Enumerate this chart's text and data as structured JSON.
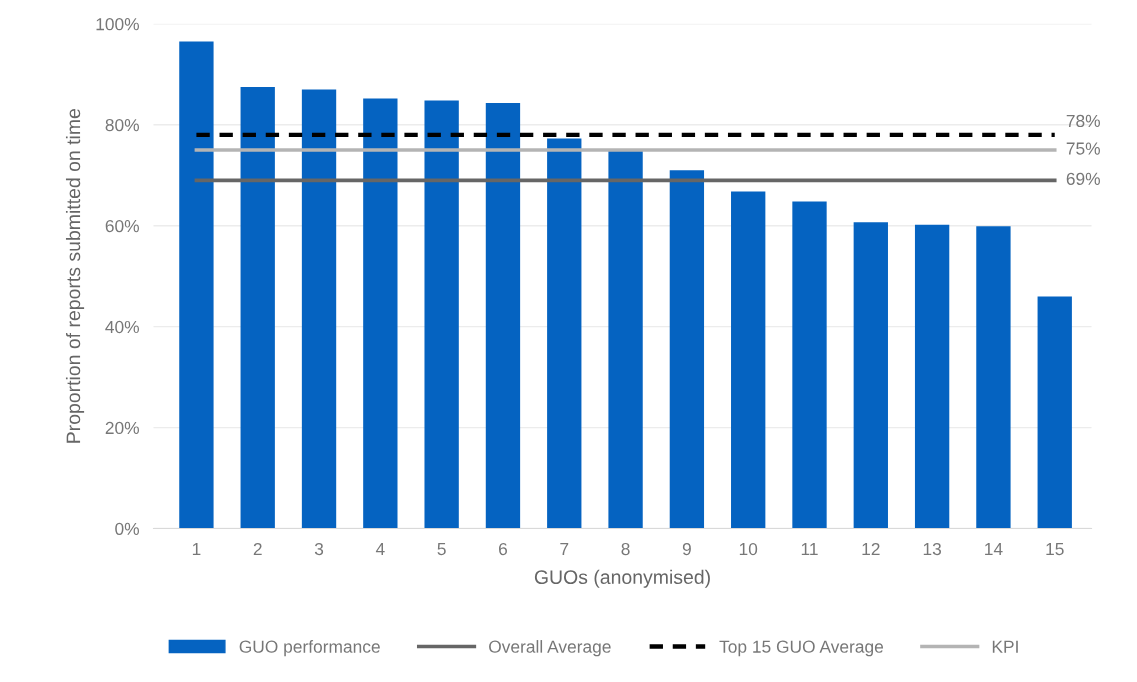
{
  "chart_data": {
    "type": "bar",
    "xlabel": "GUOs (anonymised)",
    "ylabel": "Proportion of reports submitted on time",
    "categories": [
      "1",
      "2",
      "3",
      "4",
      "5",
      "6",
      "7",
      "8",
      "9",
      "10",
      "11",
      "12",
      "13",
      "14",
      "15"
    ],
    "series": [
      {
        "name": "GUO performance",
        "color": "#0563c1",
        "values": [
          96.5,
          87.5,
          87,
          85.2,
          84.8,
          84.3,
          77.3,
          75,
          71,
          66.8,
          64.8,
          60.7,
          60.2,
          59.9,
          46
        ]
      },
      {
        "name": "Overall Average",
        "type": "line",
        "color": "#666666",
        "line_style": "solid",
        "values": [
          69,
          69,
          69,
          69,
          69,
          69,
          69,
          69,
          69,
          69,
          69,
          69,
          69,
          69,
          69
        ],
        "value_labels": [
          null,
          null,
          null,
          null,
          null,
          null,
          null,
          null,
          null,
          null,
          null,
          null,
          null,
          null,
          "69%"
        ]
      },
      {
        "name": "Top 15 GUO Average",
        "type": "line",
        "color": "#000000",
        "line_style": "dashed",
        "values": [
          78,
          78,
          78,
          78,
          78,
          78,
          78,
          78,
          78,
          78,
          78,
          78,
          78,
          78,
          78
        ],
        "value_labels": [
          null,
          null,
          null,
          null,
          null,
          null,
          null,
          null,
          null,
          null,
          null,
          null,
          null,
          null,
          "78%"
        ]
      },
      {
        "name": "KPI",
        "type": "line",
        "color": "#b4b4b4",
        "line_style": "solid",
        "values": [
          75,
          75,
          75,
          75,
          75,
          75,
          75,
          75,
          75,
          75,
          75,
          75,
          75,
          75,
          75
        ],
        "value_labels": [
          null,
          null,
          null,
          null,
          null,
          null,
          null,
          null,
          null,
          null,
          null,
          null,
          null,
          null,
          "75%"
        ]
      }
    ],
    "ylim": [
      0,
      100
    ],
    "yticks": [
      {
        "value": 0,
        "label": "0%"
      },
      {
        "value": 20,
        "label": "20%"
      },
      {
        "value": 40,
        "label": "40%"
      },
      {
        "value": 60,
        "label": "60%"
      },
      {
        "value": 80,
        "label": "80%"
      },
      {
        "value": 100,
        "label": "100%"
      }
    ],
    "grid": "y",
    "legend": "bottom",
    "marker": "none"
  }
}
